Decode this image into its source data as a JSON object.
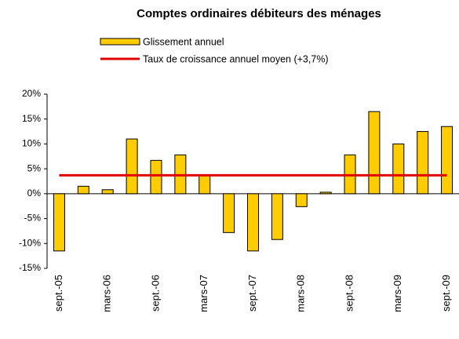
{
  "chart_data": {
    "type": "bar",
    "title": "Comptes ordinaires débiteurs des ménages",
    "categories": [
      "sept.-05",
      null,
      "mars-06",
      null,
      "sept.-06",
      null,
      "mars-07",
      null,
      "sept.-07",
      null,
      "mars-08",
      null,
      "sept.-08",
      null,
      "mars-09",
      null,
      "sept.-09"
    ],
    "series": [
      {
        "name": "Glissement annuel",
        "color": "#ffcc00",
        "values": [
          -11.5,
          1.5,
          0.8,
          11,
          6.7,
          7.8,
          3.8,
          -7.8,
          -11.5,
          -9.2,
          -2.6,
          0.3,
          7.8,
          16.5,
          10,
          12.5,
          13.5
        ]
      }
    ],
    "reference_line": {
      "name": "Taux de croissance annuel moyen (+3,7%)",
      "value": 3.7,
      "color": "#e00000"
    },
    "ylim": [
      -15,
      20
    ],
    "yticks": [
      {
        "value": -15,
        "label": "-15%"
      },
      {
        "value": -10,
        "label": "-10%"
      },
      {
        "value": -5,
        "label": "-5%"
      },
      {
        "value": 0,
        "label": "0%"
      },
      {
        "value": 5,
        "label": "5%"
      },
      {
        "value": 10,
        "label": "10%"
      },
      {
        "value": 15,
        "label": "15%"
      },
      {
        "value": 20,
        "label": "20%"
      }
    ],
    "grid": false
  }
}
